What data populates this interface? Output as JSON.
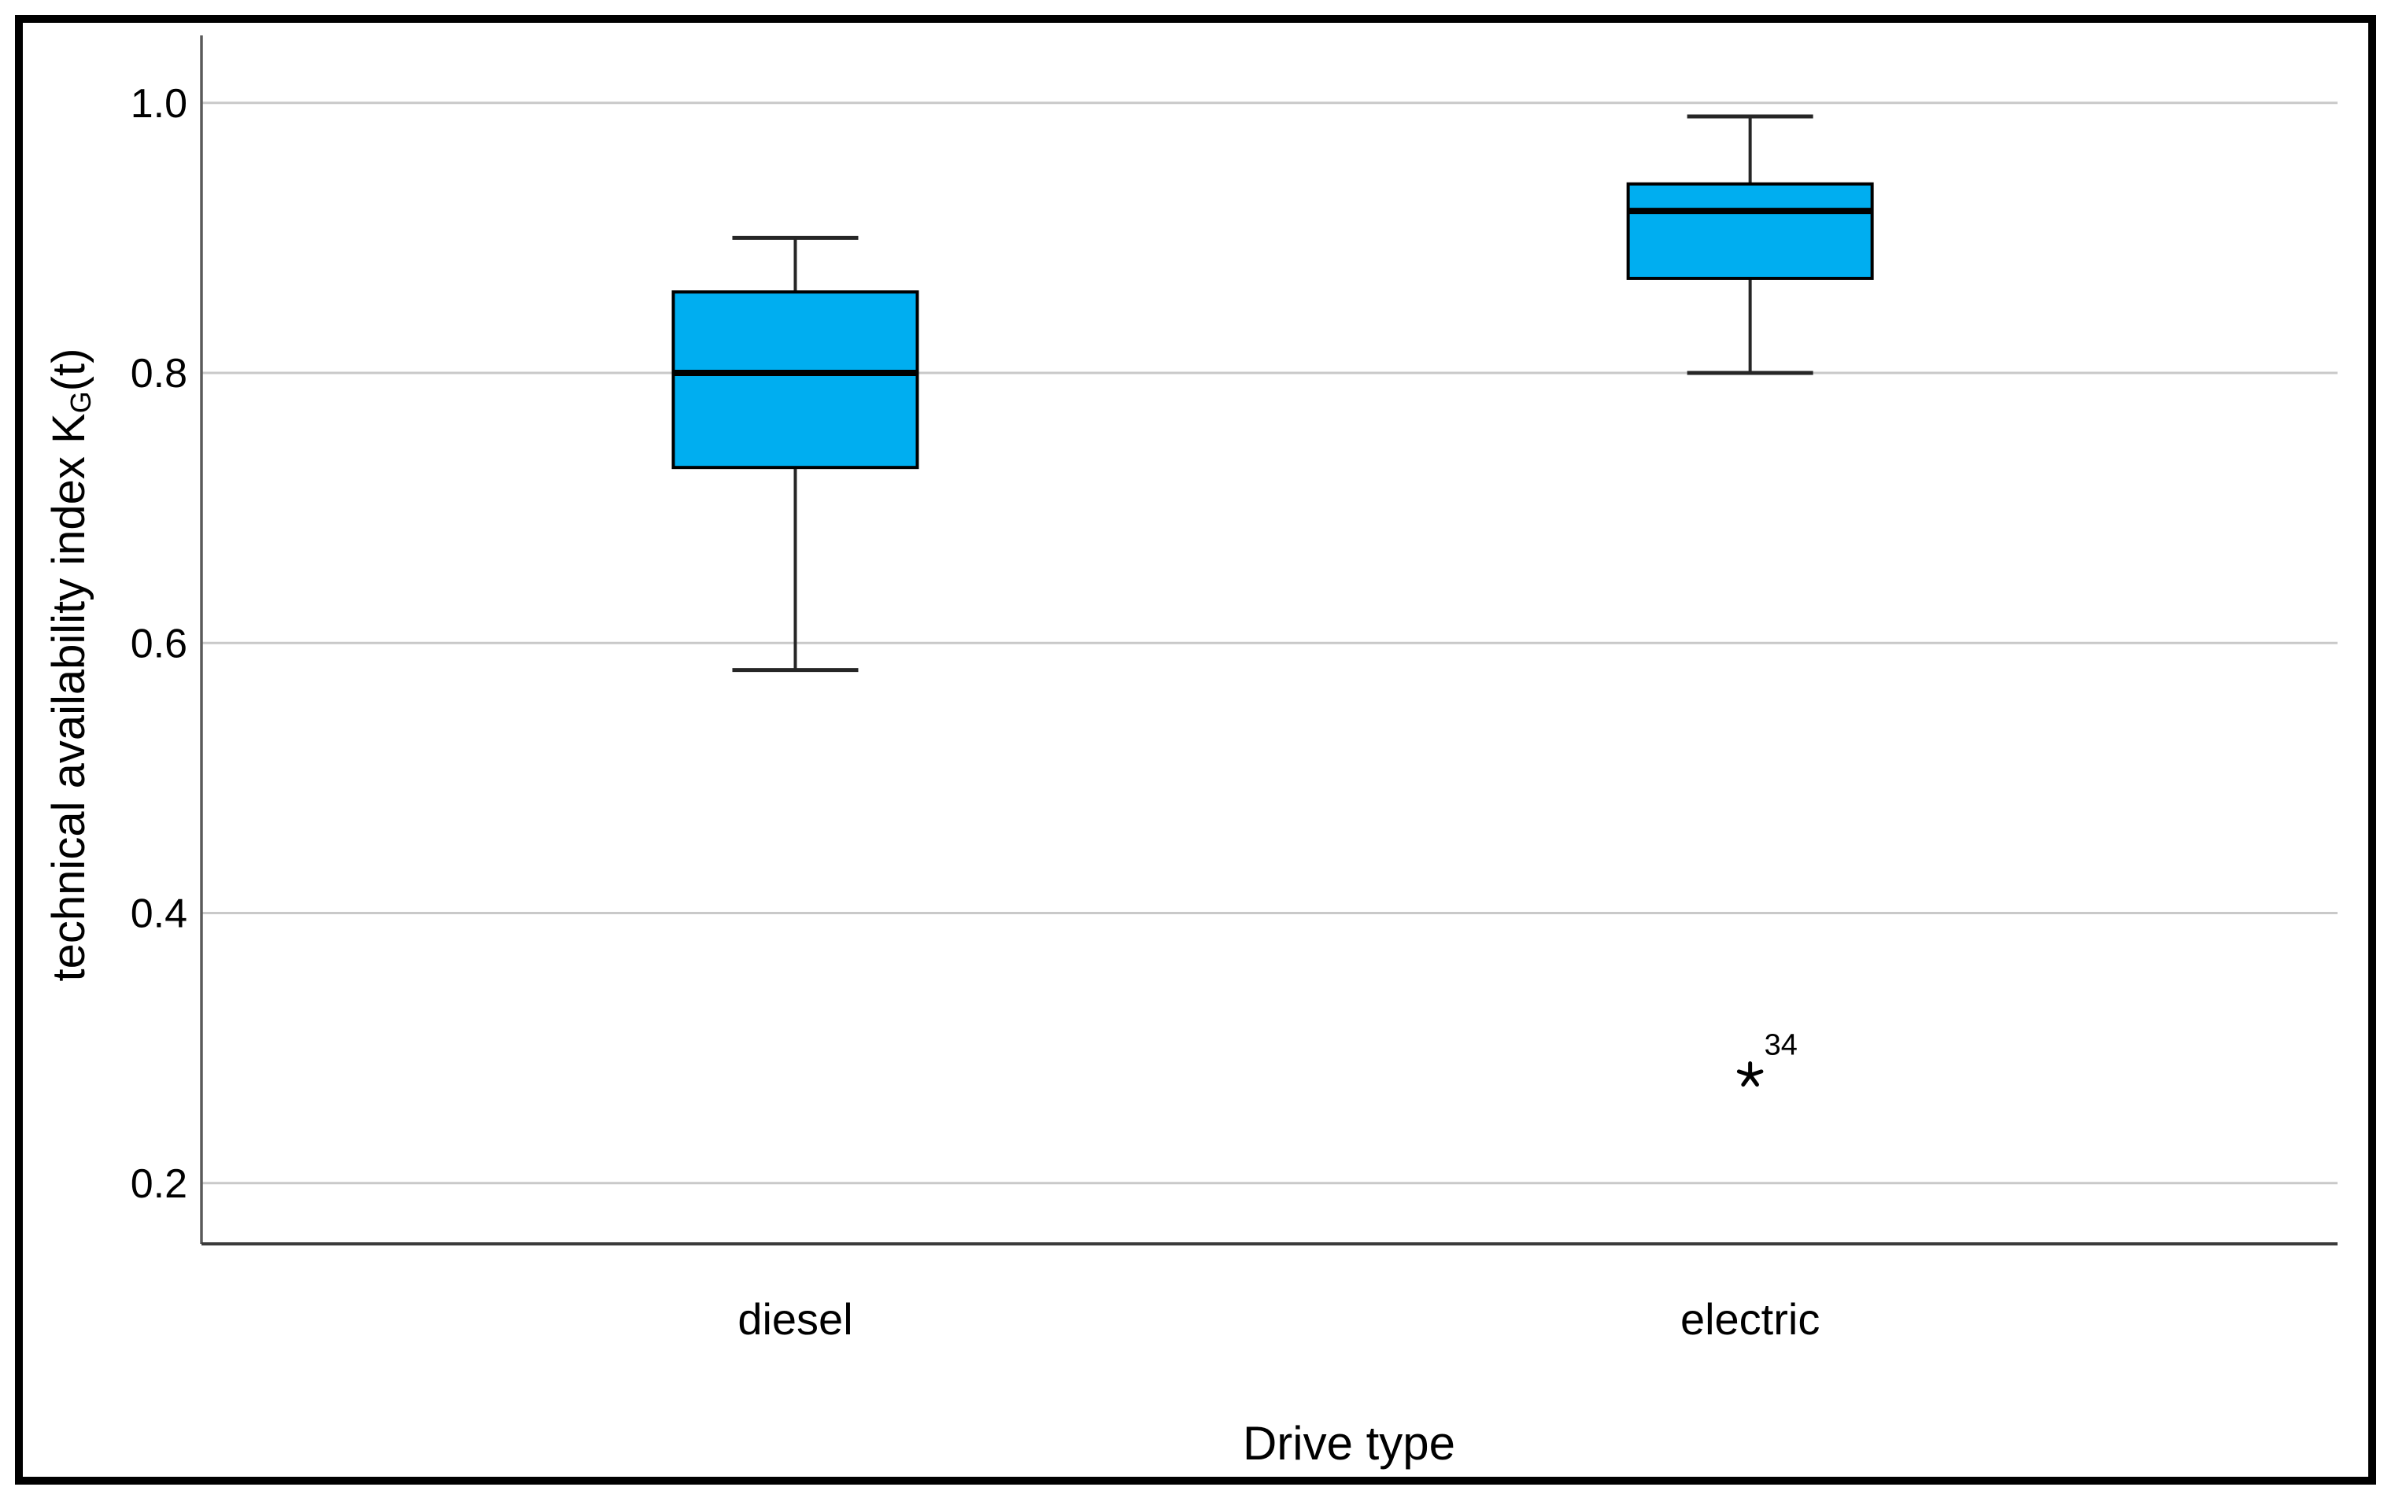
{
  "figure": {
    "y_axis_title_prefix": "technical availability index K",
    "y_axis_title_sub": "G",
    "y_axis_title_suffix": "(t)",
    "x_axis_title": "Drive type"
  },
  "chart_data": {
    "type": "boxplot",
    "title": "",
    "xlabel": "Drive type",
    "ylabel": "technical availability index K_G(t)",
    "categories": [
      "diesel",
      "electric"
    ],
    "yticks": [
      1.0,
      0.8,
      0.6,
      0.4,
      0.2
    ],
    "ytick_labels": [
      "1.0",
      "0.8",
      "0.6",
      "0.4",
      "0.2"
    ],
    "ylim": [
      0.155,
      1.05
    ],
    "grid": "horizontal-gridlines",
    "legend": "none",
    "colors": {
      "box_fill": "#00AEF0",
      "box_border": "#000000",
      "median": "#000000",
      "whisker": "#262626",
      "gridline": "#C9C9C9",
      "y_axis_line": "#5A5A5A",
      "x_axis_line": "#3A3A3A",
      "frame": "#000000"
    },
    "series": [
      {
        "name": "diesel",
        "min": 0.58,
        "q1": 0.73,
        "median": 0.8,
        "q3": 0.86,
        "max": 0.9,
        "outliers": []
      },
      {
        "name": "electric",
        "min": 0.8,
        "q1": 0.87,
        "median": 0.92,
        "q3": 0.94,
        "max": 0.99,
        "outliers": [
          {
            "value": 0.28,
            "label": "34",
            "marker": "star-asterisk"
          }
        ]
      }
    ]
  }
}
